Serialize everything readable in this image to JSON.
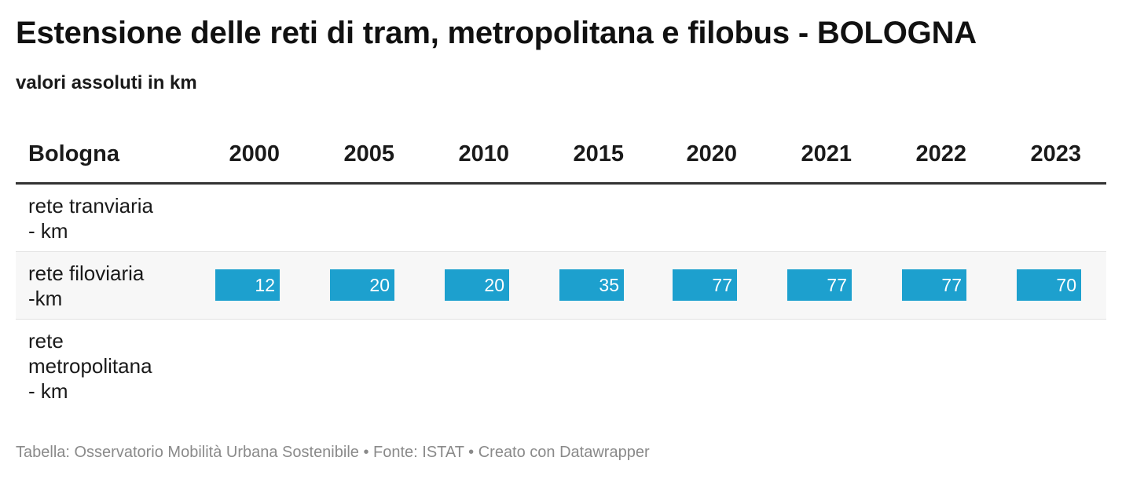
{
  "title": "Estensione delle reti di tram, metropolitana e filobus - BOLOGNA",
  "subtitle": "valori assoluti in km",
  "footer": "Tabella: Osservatorio Mobilità Urbana Sostenibile • Fonte: ISTAT • Creato con Datawrapper",
  "colors": {
    "bar": "#1da0ce",
    "header_rule": "#333333",
    "stripe": "#f7f7f7"
  },
  "chart_data": {
    "type": "table",
    "title": "Estensione delle reti di tram, metropolitana e filobus - BOLOGNA",
    "subtitle": "valori assoluti in km",
    "header_label": "Bologna",
    "columns": [
      "2000",
      "2005",
      "2010",
      "2015",
      "2020",
      "2021",
      "2022",
      "2023"
    ],
    "rows": [
      {
        "label": "rete tranviaria - km",
        "values": [
          null,
          null,
          null,
          null,
          null,
          null,
          null,
          null
        ]
      },
      {
        "label": "rete filoviaria -km",
        "values": [
          12,
          20,
          20,
          35,
          77,
          77,
          77,
          70
        ]
      },
      {
        "label": "rete metropolitana - km",
        "values": [
          null,
          null,
          null,
          null,
          null,
          null,
          null,
          null
        ]
      }
    ],
    "display_labels": [
      [
        "rete tranviaria",
        "- km"
      ],
      [
        "rete filoviaria",
        "-km"
      ],
      [
        "rete",
        "metropolitana",
        "- km"
      ]
    ]
  }
}
